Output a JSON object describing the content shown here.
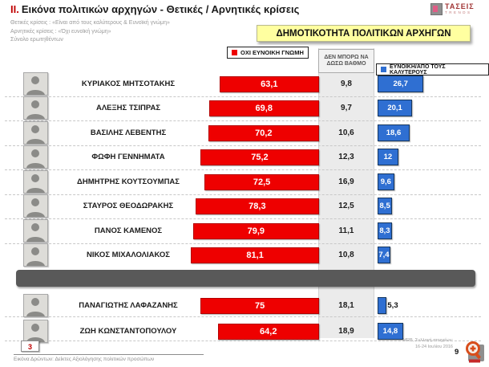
{
  "header": {
    "title_prefix": "II.",
    "title": "Εικόνα πολιτικών αρχηγών  - Θετικές / Αρνητικές κρίσεις",
    "subtitle_lines": [
      "Θετικές κρίσεις : «Είναι από τους καλύτερους &  Ευνοϊκή γνώμη»",
      "Αρνητικές κρίσεις : «Όχι ευνοϊκή γνώμη»",
      "Σύνολο ερωτηθέντων"
    ],
    "banner": "ΔΗΜΟΤΙΚΟΤΗΤΑ ΠΟΛΙΤΙΚΩΝ ΑΡΧΗΓΩΝ",
    "logo_text": "ΤΑΣΕΙΣ",
    "logo_subtext": "TRENDS"
  },
  "legend": {
    "negative": "ΟΧΙ ΕΥΝΟΙΚΗ ΓΝΩΜΗ",
    "neutral": "ΔΕΝ ΜΠΟΡΩ ΝΑ ΔΩΣΩ ΒΑΘΜΟ",
    "positive": "ΕΥΝΟΙΚΗ/ΑΠΟ ΤΟΥΣ ΚΑΛΥΤΕΡΟΥΣ"
  },
  "colors": {
    "negative_bar": "#ee0000",
    "positive_bar": "#2f6fd2",
    "neutral_band": "#ebebeb",
    "banner_bg": "#ffffa0",
    "divider": "#595959",
    "title_accent": "#c00000"
  },
  "rows": [
    {
      "name": "ΚΥΡΙΑΚΟΣ ΜΗΤΣΟΤΑΚΗΣ",
      "negative": "63,1",
      "dontknow": "9,8",
      "positive": "26,7"
    },
    {
      "name": "ΑΛΕΞΗΣ ΤΣΙΠΡΑΣ",
      "negative": "69,8",
      "dontknow": "9,7",
      "positive": "20,1"
    },
    {
      "name": "ΒΑΣΙΛΗΣ ΛΕΒΕΝΤΗΣ",
      "negative": "70,2",
      "dontknow": "10,6",
      "positive": "18,6"
    },
    {
      "name": "ΦΩΦΗ ΓΕΝΝΗΜΑΤΑ",
      "negative": "75,2",
      "dontknow": "12,3",
      "positive": "12"
    },
    {
      "name": "ΔΗΜΗΤΡΗΣ ΚΟΥΤΣΟΥΜΠΑΣ",
      "negative": "72,5",
      "dontknow": "16,9",
      "positive": "9,6"
    },
    {
      "name": "ΣΤΑΥΡΟΣ ΘΕΟΔΩΡΑΚΗΣ",
      "negative": "78,3",
      "dontknow": "12,5",
      "positive": "8,5"
    },
    {
      "name": "ΠΑΝΟΣ ΚΑΜΕΝΟΣ",
      "negative": "79,9",
      "dontknow": "11,1",
      "positive": "8,3"
    },
    {
      "name": "ΝΙΚΟΣ ΜΙΧΑΛΟΛΙΑΚΟΣ",
      "negative": "81,1",
      "dontknow": "10,8",
      "positive": "7,4"
    },
    {
      "name": "ΠΑΝΑΓΙΩΤΗΣ ΛΑΦΑΖΑΝΗΣ",
      "negative": "75",
      "dontknow": "18,1",
      "positive": "5,3"
    },
    {
      "name": "ΖΩΗ ΚΩΝΣΤΑΝΤΟΠΟΥΛΟΥ",
      "negative": "64,2",
      "dontknow": "18,9",
      "positive": "14,8"
    }
  ],
  "chart_data": {
    "type": "bar",
    "orientation": "horizontal",
    "title": "ΔΗΜΟΤΙΚΟΤΗΤΑ ΠΟΛΙΤΙΚΩΝ ΑΡΧΗΓΩΝ",
    "categories": [
      "ΚΥΡΙΑΚΟΣ ΜΗΤΣΟΤΑΚΗΣ",
      "ΑΛΕΞΗΣ ΤΣΙΠΡΑΣ",
      "ΒΑΣΙΛΗΣ ΛΕΒΕΝΤΗΣ",
      "ΦΩΦΗ ΓΕΝΝΗΜΑΤΑ",
      "ΔΗΜΗΤΡΗΣ ΚΟΥΤΣΟΥΜΠΑΣ",
      "ΣΤΑΥΡΟΣ ΘΕΟΔΩΡΑΚΗΣ",
      "ΠΑΝΟΣ ΚΑΜΕΝΟΣ",
      "ΝΙΚΟΣ ΜΙΧΑΛΟΛΙΑΚΟΣ",
      "ΠΑΝΑΓΙΩΤΗΣ ΛΑΦΑΖΑΝΗΣ",
      "ΖΩΗ ΚΩΝΣΤΑΝΤΟΠΟΥΛΟΥ"
    ],
    "series": [
      {
        "name": "ΟΧΙ ΕΥΝΟΙΚΗ ΓΝΩΜΗ",
        "color": "#ee0000",
        "values": [
          63.1,
          69.8,
          70.2,
          75.2,
          72.5,
          78.3,
          79.9,
          81.1,
          75,
          64.2
        ]
      },
      {
        "name": "ΔΕΝ ΜΠΟΡΩ ΝΑ ΔΩΣΩ ΒΑΘΜΟ",
        "color": "#ebebeb",
        "values": [
          9.8,
          9.7,
          10.6,
          12.3,
          16.9,
          12.5,
          11.1,
          10.8,
          18.1,
          18.9
        ]
      },
      {
        "name": "ΕΥΝΟΙΚΗ/ΑΠΟ ΤΟΥΣ ΚΑΛΥΤΕΡΟΥΣ",
        "color": "#2f6fd2",
        "values": [
          26.7,
          20.1,
          18.6,
          12,
          9.6,
          8.5,
          8.3,
          7.4,
          5.3,
          14.8
        ]
      }
    ],
    "value_unit": "percent",
    "legend_position": "top",
    "grid": false,
    "group_divider_after_index": 7
  },
  "footer": {
    "badge": "3",
    "note": "Εικόνα Δρώντων: Δείκτες Αξιολόγησης πολιτικών προσώπων",
    "source_line1": "MRB, Συλλογή στοιχείων:",
    "source_line2": "16-24 Ιουλίου 2016",
    "page_number": "9"
  }
}
